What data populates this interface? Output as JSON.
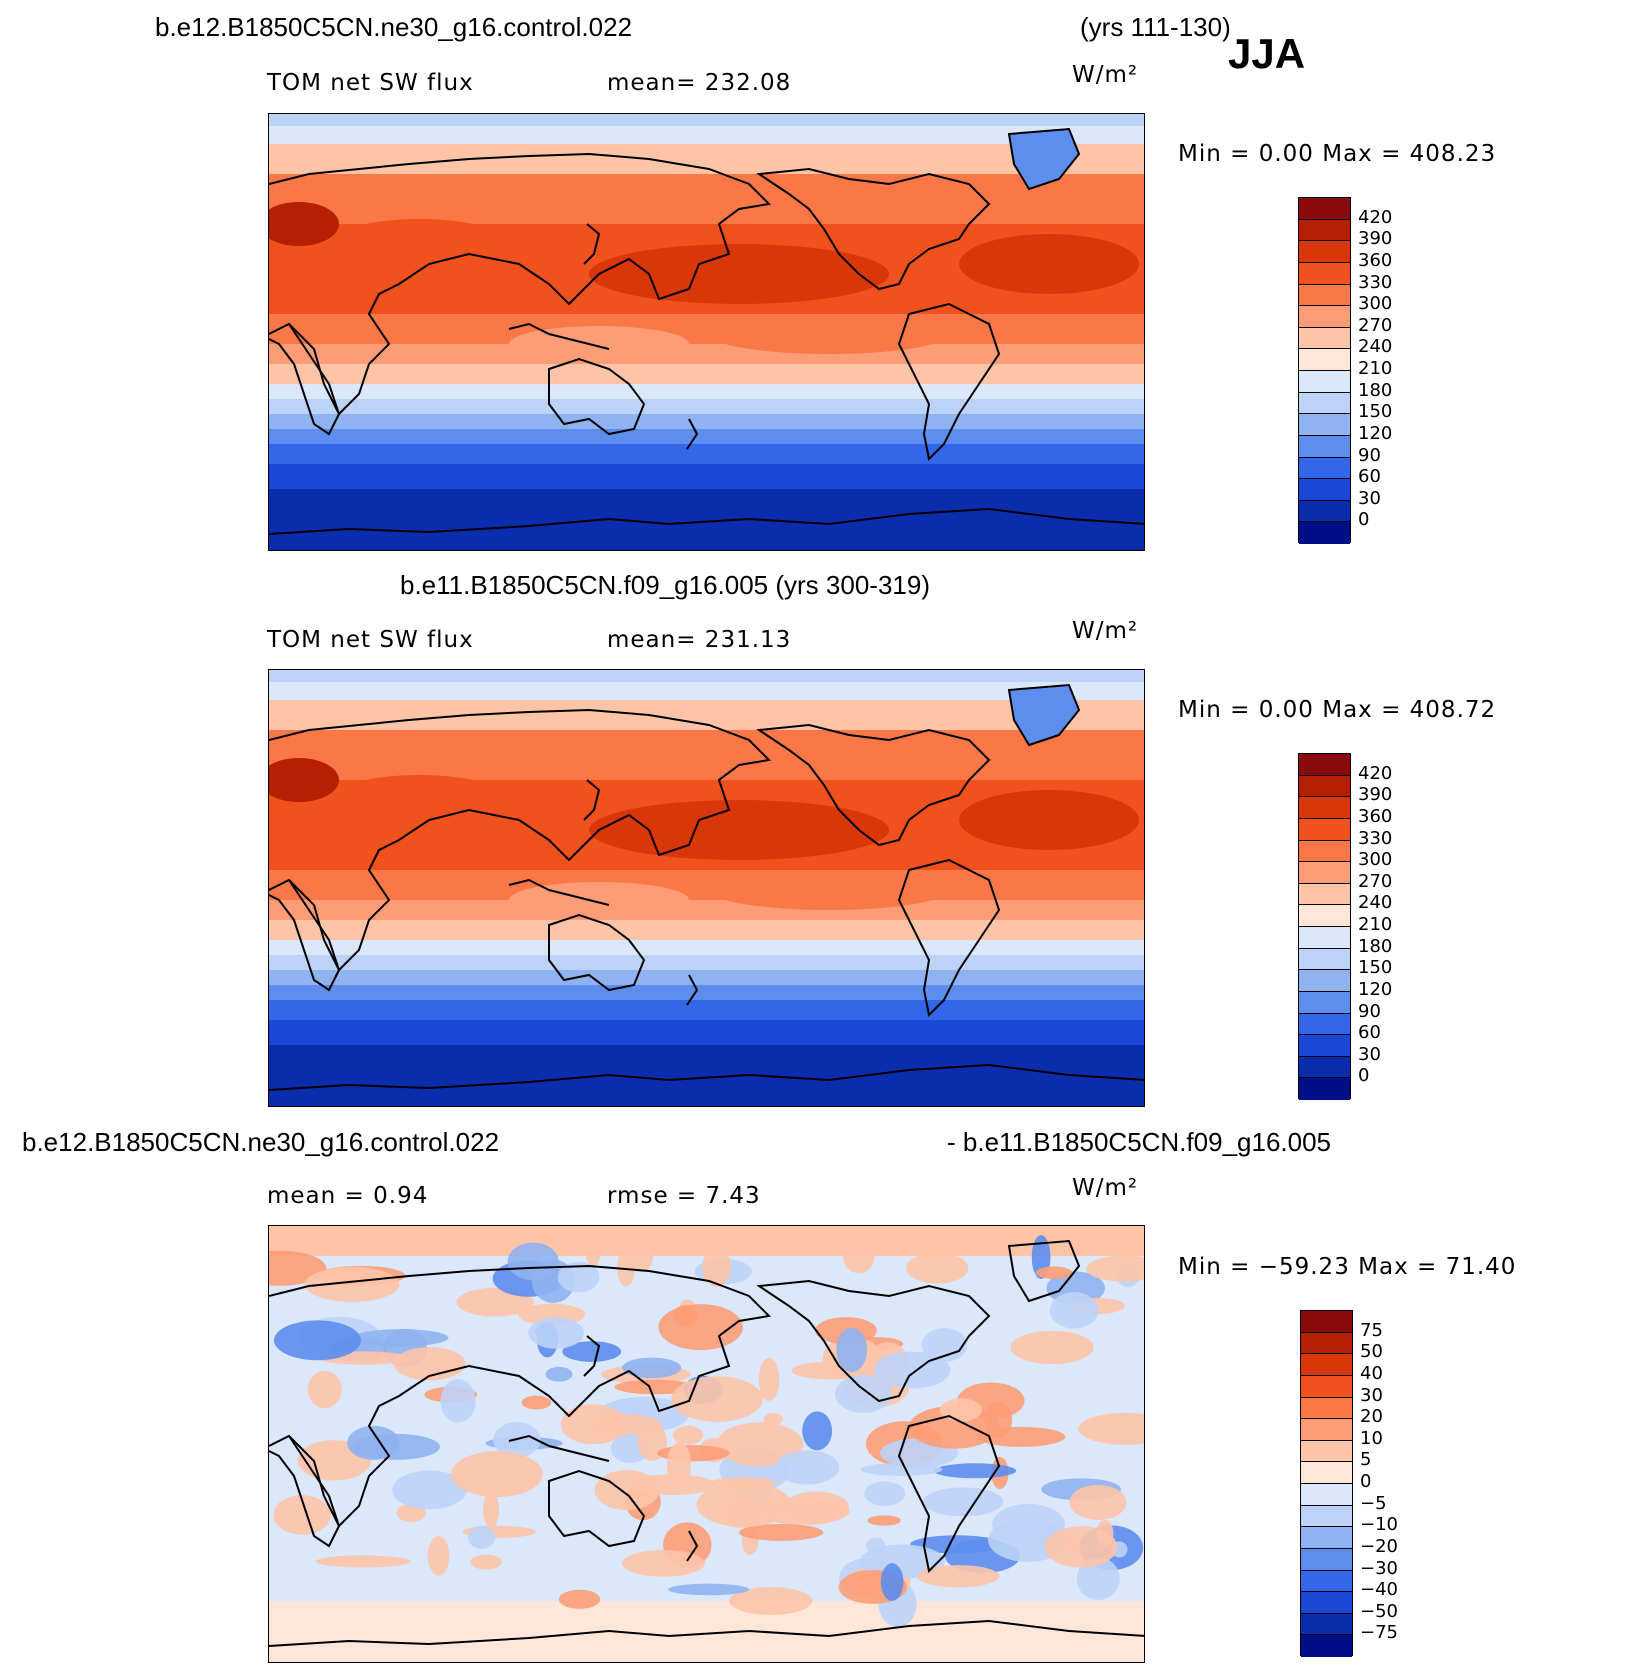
{
  "header": {
    "case_a": "b.e12.B1850C5CN.ne30_g16.control.022",
    "years_a": "(yrs 111-130)",
    "season": "JJA"
  },
  "chart_data": [
    {
      "type": "heatmap",
      "title": "b.e12.B1850C5CN.ne30_g16.control.022 (yrs 111-130)",
      "variable_label": "TOM net SW flux",
      "stat_label": "mean= 232.08",
      "units_label": "W/m²",
      "minmax_label": "Min =    0.00  Max  =  408.23",
      "min": 0.0,
      "max": 408.23,
      "mean": 232.08,
      "colorbar": {
        "ticks": [
          "420",
          "390",
          "360",
          "330",
          "300",
          "270",
          "240",
          "210",
          "180",
          "150",
          "120",
          "90",
          "60",
          "30",
          "0"
        ],
        "colors": [
          "#8a0b0b",
          "#b51f02",
          "#d9360a",
          "#f0511d",
          "#fa7848",
          "#fd9d77",
          "#fdc4a8",
          "#fee7d8",
          "#dbe8fb",
          "#bcd3f7",
          "#8fb3f0",
          "#5d8ded",
          "#3366e8",
          "#1a47d6",
          "#0a2dad",
          "#000e87"
        ]
      }
    },
    {
      "type": "heatmap",
      "title": "b.e11.B1850C5CN.f09_g16.005 (yrs 300-319)",
      "variable_label": "TOM net SW flux",
      "stat_label": "mean= 231.13",
      "units_label": "W/m²",
      "minmax_label": "Min =    0.00  Max  =  408.72",
      "min": 0.0,
      "max": 408.72,
      "mean": 231.13,
      "colorbar": {
        "ticks": [
          "420",
          "390",
          "360",
          "330",
          "300",
          "270",
          "240",
          "210",
          "180",
          "150",
          "120",
          "90",
          "60",
          "30",
          "0"
        ],
        "colors": [
          "#8a0b0b",
          "#b51f02",
          "#d9360a",
          "#f0511d",
          "#fa7848",
          "#fd9d77",
          "#fdc4a8",
          "#fee7d8",
          "#dbe8fb",
          "#bcd3f7",
          "#8fb3f0",
          "#5d8ded",
          "#3366e8",
          "#1a47d6",
          "#0a2dad",
          "#000e87"
        ]
      }
    },
    {
      "type": "heatmap",
      "title_left": "b.e12.B1850C5CN.ne30_g16.control.022",
      "title_right": "- b.e11.B1850C5CN.f09_g16.005",
      "variable_label": "mean =    0.94",
      "stat_label": "rmse =    7.43",
      "units_label": "W/m²",
      "minmax_label": "Min  = −59.23  Max  =   71.40",
      "min": -59.23,
      "max": 71.4,
      "mean": 0.94,
      "rmse": 7.43,
      "colorbar": {
        "ticks": [
          "75",
          "50",
          "40",
          "30",
          "20",
          "10",
          "5",
          "0",
          "−5",
          "−10",
          "−20",
          "−30",
          "−40",
          "−50",
          "−75"
        ],
        "colors": [
          "#8a0b0b",
          "#b51f02",
          "#d9360a",
          "#f0511d",
          "#fa7848",
          "#fd9d77",
          "#fdc4a8",
          "#fee7d8",
          "#dbe8fb",
          "#bcd3f7",
          "#8fb3f0",
          "#5d8ded",
          "#3366e8",
          "#1a47d6",
          "#0a2dad",
          "#000e87"
        ]
      }
    }
  ]
}
